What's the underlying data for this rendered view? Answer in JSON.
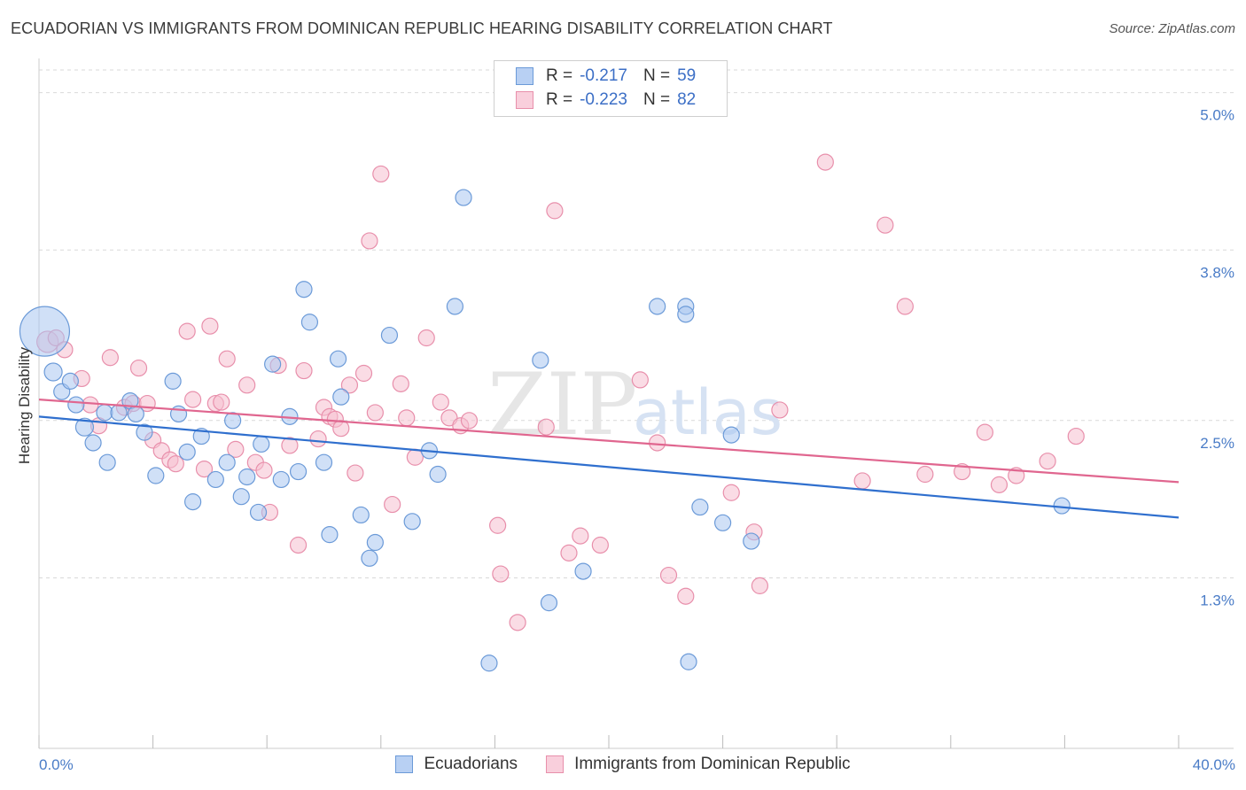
{
  "title": "ECUADORIAN VS IMMIGRANTS FROM DOMINICAN REPUBLIC HEARING DISABILITY CORRELATION CHART",
  "source": "Source: ZipAtlas.com",
  "watermark": {
    "zip": "ZIP",
    "atlas": "atlas"
  },
  "legend": {
    "rows": [
      {
        "r_label": "R =",
        "r_value": "-0.217",
        "n_label": "N =",
        "n_value": "59"
      },
      {
        "r_label": "R =",
        "r_value": "-0.223",
        "n_label": "N =",
        "n_value": "82"
      }
    ]
  },
  "bottom_legend": [
    "Ecuadorians",
    "Immigrants from Dominican Republic"
  ],
  "colors": {
    "blue_fill": "#a9c6f0",
    "blue_stroke": "#6b9ad8",
    "blue_line": "#2f6fce",
    "pink_fill": "#f6c0d0",
    "pink_stroke": "#e88fab",
    "pink_line": "#e0668f",
    "tick_text": "#4a7cc7",
    "grid": "#d9d9d9"
  },
  "chart_data": {
    "type": "scatter",
    "title": "ECUADORIAN VS IMMIGRANTS FROM DOMINICAN REPUBLIC HEARING DISABILITY CORRELATION CHART",
    "xlabel": "",
    "ylabel": "Hearing Disability",
    "xlim": [
      0,
      40
    ],
    "ylim": [
      0.0,
      5.2
    ],
    "x_tick_labels": [
      "0.0%",
      "40.0%"
    ],
    "y_ticks": [
      1.3,
      2.5,
      3.8,
      5.0
    ],
    "y_tick_labels": [
      "1.3%",
      "2.5%",
      "3.8%",
      "5.0%"
    ],
    "series": [
      {
        "name": "Ecuadorians",
        "r": -0.217,
        "n": 59,
        "trend": {
          "x": [
            0,
            40
          ],
          "y": [
            2.53,
            1.76
          ]
        },
        "points": [
          [
            0.2,
            3.18,
            28
          ],
          [
            0.5,
            2.87,
            10
          ],
          [
            0.8,
            2.72,
            9
          ],
          [
            1.1,
            2.8,
            9
          ],
          [
            1.3,
            2.62,
            9
          ],
          [
            1.6,
            2.45,
            10
          ],
          [
            1.9,
            2.33,
            9
          ],
          [
            2.3,
            2.56,
            9
          ],
          [
            2.8,
            2.56,
            9
          ],
          [
            3.2,
            2.65,
            9
          ],
          [
            3.4,
            2.55,
            9
          ],
          [
            3.7,
            2.41,
            9
          ],
          [
            2.4,
            2.18,
            9
          ],
          [
            4.1,
            2.08,
            9
          ],
          [
            4.7,
            2.8,
            9
          ],
          [
            4.9,
            2.55,
            9
          ],
          [
            5.2,
            2.26,
            9
          ],
          [
            5.4,
            1.88,
            9
          ],
          [
            5.7,
            2.38,
            9
          ],
          [
            6.2,
            2.05,
            9
          ],
          [
            6.6,
            2.18,
            9
          ],
          [
            6.8,
            2.5,
            9
          ],
          [
            7.1,
            1.92,
            9
          ],
          [
            7.3,
            2.07,
            9
          ],
          [
            7.7,
            1.8,
            9
          ],
          [
            7.8,
            2.32,
            9
          ],
          [
            8.2,
            2.93,
            9
          ],
          [
            8.5,
            2.05,
            9
          ],
          [
            8.8,
            2.53,
            9
          ],
          [
            9.1,
            2.11,
            9
          ],
          [
            9.3,
            3.5,
            9
          ],
          [
            9.5,
            3.25,
            9
          ],
          [
            10.0,
            2.18,
            9
          ],
          [
            10.2,
            1.63,
            9
          ],
          [
            10.5,
            2.97,
            9
          ],
          [
            10.6,
            2.68,
            9
          ],
          [
            11.3,
            1.78,
            9
          ],
          [
            11.6,
            1.45,
            9
          ],
          [
            11.8,
            1.57,
            9
          ],
          [
            12.3,
            3.15,
            9
          ],
          [
            13.1,
            1.73,
            9
          ],
          [
            13.7,
            2.27,
            9
          ],
          [
            14.0,
            2.09,
            9
          ],
          [
            14.6,
            3.37,
            9
          ],
          [
            14.9,
            4.2,
            9
          ],
          [
            15.8,
            0.65,
            9
          ],
          [
            17.6,
            2.96,
            9
          ],
          [
            17.9,
            1.11,
            9
          ],
          [
            19.1,
            1.35,
            9
          ],
          [
            21.7,
            3.37,
            9
          ],
          [
            22.7,
            3.37,
            9
          ],
          [
            22.7,
            3.31,
            9
          ],
          [
            22.8,
            0.66,
            9
          ],
          [
            23.2,
            1.84,
            9
          ],
          [
            24.0,
            1.72,
            9
          ],
          [
            24.3,
            2.39,
            9
          ],
          [
            25.0,
            1.58,
            9
          ],
          [
            35.9,
            1.85,
            9
          ]
        ]
      },
      {
        "name": "Immigrants from Dominican Republic",
        "r": -0.223,
        "n": 82,
        "trend": {
          "x": [
            0,
            40
          ],
          "y": [
            2.66,
            2.03
          ]
        },
        "points": [
          [
            0.3,
            3.1,
            12
          ],
          [
            0.6,
            3.13,
            9
          ],
          [
            0.9,
            3.04,
            9
          ],
          [
            1.5,
            2.82,
            9
          ],
          [
            1.8,
            2.62,
            9
          ],
          [
            2.1,
            2.46,
            9
          ],
          [
            2.5,
            2.98,
            9
          ],
          [
            3.0,
            2.6,
            9
          ],
          [
            3.3,
            2.63,
            9
          ],
          [
            3.5,
            2.9,
            9
          ],
          [
            3.8,
            2.63,
            9
          ],
          [
            4.0,
            2.35,
            9
          ],
          [
            4.3,
            2.27,
            9
          ],
          [
            4.6,
            2.2,
            9
          ],
          [
            4.8,
            2.17,
            9
          ],
          [
            5.2,
            3.18,
            9
          ],
          [
            5.4,
            2.66,
            9
          ],
          [
            5.8,
            2.13,
            9
          ],
          [
            6.0,
            3.22,
            9
          ],
          [
            6.2,
            2.63,
            9
          ],
          [
            6.4,
            2.64,
            9
          ],
          [
            6.6,
            2.97,
            9
          ],
          [
            6.9,
            2.28,
            9
          ],
          [
            7.3,
            2.77,
            9
          ],
          [
            7.6,
            2.18,
            9
          ],
          [
            7.9,
            2.12,
            9
          ],
          [
            8.1,
            1.8,
            9
          ],
          [
            8.4,
            2.92,
            9
          ],
          [
            8.8,
            2.31,
            9
          ],
          [
            9.1,
            1.55,
            9
          ],
          [
            9.3,
            2.88,
            9
          ],
          [
            9.8,
            2.36,
            9
          ],
          [
            10.0,
            2.6,
            9
          ],
          [
            10.2,
            2.53,
            9
          ],
          [
            10.4,
            2.51,
            9
          ],
          [
            10.6,
            2.44,
            9
          ],
          [
            10.9,
            2.77,
            9
          ],
          [
            11.1,
            2.1,
            9
          ],
          [
            11.4,
            2.86,
            9
          ],
          [
            11.6,
            3.87,
            9
          ],
          [
            11.8,
            2.56,
            9
          ],
          [
            12.0,
            4.38,
            9
          ],
          [
            12.4,
            1.86,
            9
          ],
          [
            12.7,
            2.78,
            9
          ],
          [
            12.9,
            2.52,
            9
          ],
          [
            13.2,
            2.22,
            9
          ],
          [
            13.6,
            3.13,
            9
          ],
          [
            14.1,
            2.64,
            9
          ],
          [
            14.4,
            2.52,
            9
          ],
          [
            14.8,
            2.46,
            9
          ],
          [
            15.1,
            2.5,
            9
          ],
          [
            16.1,
            1.7,
            9
          ],
          [
            16.2,
            1.33,
            9
          ],
          [
            16.8,
            0.96,
            9
          ],
          [
            17.8,
            2.45,
            9
          ],
          [
            18.1,
            4.1,
            9
          ],
          [
            18.6,
            1.49,
            9
          ],
          [
            19.0,
            1.62,
            9
          ],
          [
            19.7,
            1.55,
            9
          ],
          [
            21.1,
            2.81,
            9
          ],
          [
            21.7,
            2.33,
            9
          ],
          [
            22.1,
            1.32,
            9
          ],
          [
            22.7,
            1.16,
            9
          ],
          [
            24.3,
            1.95,
            9
          ],
          [
            25.1,
            1.65,
            9
          ],
          [
            25.3,
            1.24,
            9
          ],
          [
            26.0,
            2.58,
            9
          ],
          [
            27.6,
            4.47,
            9
          ],
          [
            28.9,
            2.04,
            9
          ],
          [
            29.7,
            3.99,
            9
          ],
          [
            30.4,
            3.37,
            9
          ],
          [
            31.1,
            2.09,
            9
          ],
          [
            32.4,
            2.11,
            9
          ],
          [
            33.2,
            2.41,
            9
          ],
          [
            33.7,
            2.01,
            9
          ],
          [
            34.3,
            2.08,
            9
          ],
          [
            35.4,
            2.19,
            9
          ],
          [
            36.4,
            2.38,
            9
          ]
        ]
      }
    ]
  }
}
